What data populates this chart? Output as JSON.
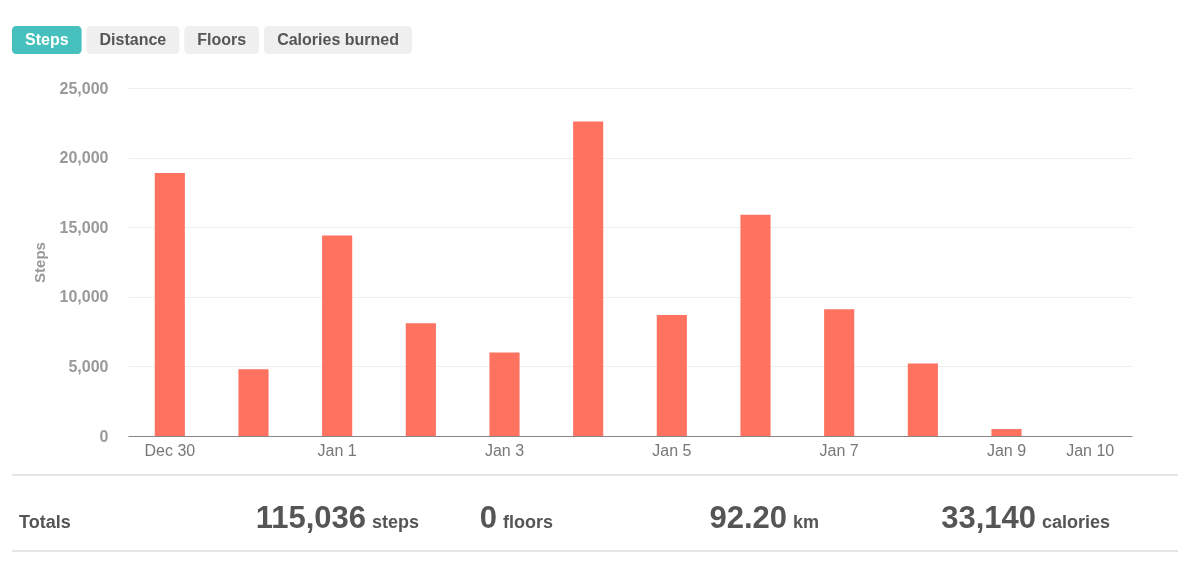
{
  "chart_data": [
    {
      "type": "bar",
      "categories": [
        "Dec 30",
        null,
        "Jan 1",
        null,
        "Jan 3",
        null,
        "Jan 5",
        null,
        "Jan 7",
        null,
        "Jan 9",
        "Jan 10"
      ],
      "values": [
        18900,
        4800,
        14400,
        8100,
        6000,
        22600,
        8700,
        15900,
        9100,
        5200,
        500,
        null
      ],
      "color": "#ff7260",
      "ylabel": "Steps",
      "ylim": [
        0,
        25000
      ],
      "yticks": [
        0,
        {
          "value": 5000,
          "label": "5,000"
        },
        {
          "value": 10000,
          "label": "10,000"
        },
        {
          "value": 15000,
          "label": "15,000"
        },
        {
          "value": 20000,
          "label": "20,000"
        },
        {
          "value": 25000,
          "label": "25,000"
        }
      ],
      "grid": "y",
      "annotations": [
        "Steps",
        "Distance",
        "Floors",
        "Calories burned"
      ]
    },
    {
      "type": "other",
      "annotations": [
        "Totals",
        "115,036",
        "steps",
        "0",
        "floors",
        "92.20",
        "km",
        "33,140",
        "calories"
      ]
    }
  ]
}
